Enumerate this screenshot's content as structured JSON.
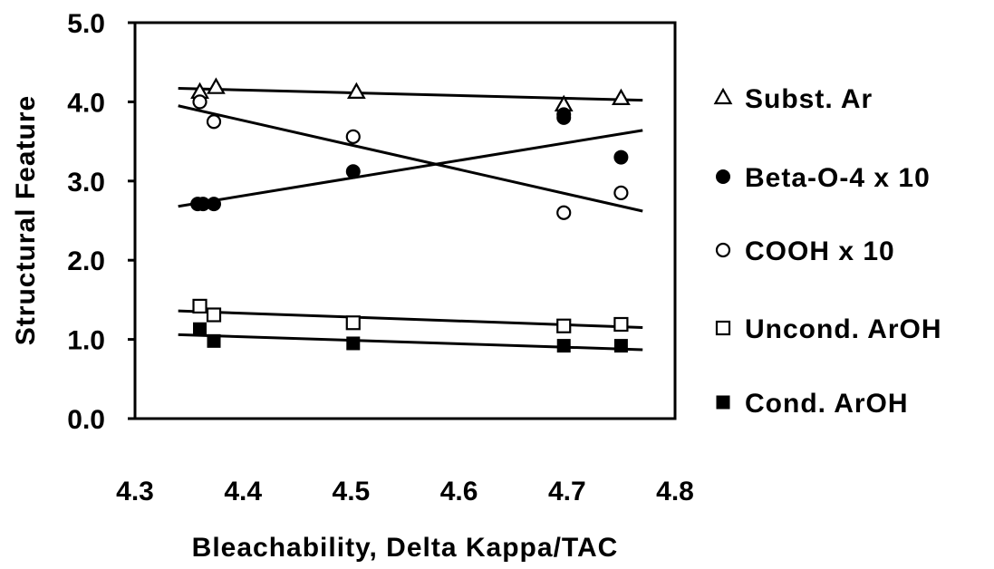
{
  "chart_data": {
    "type": "scatter",
    "title": "",
    "xlabel": "Bleachability, Delta Kappa/TAC",
    "ylabel": "Structural Feature",
    "xlim": [
      4.3,
      4.8
    ],
    "ylim": [
      0.0,
      5.0
    ],
    "x_ticks": [
      "4.3",
      "4.4",
      "4.5",
      "4.6",
      "4.7",
      "4.8"
    ],
    "y_ticks": [
      "0.0",
      "1.0",
      "2.0",
      "3.0",
      "4.0",
      "5.0"
    ],
    "grid": false,
    "legend_position": "right",
    "series": [
      {
        "name": "Subst. Ar",
        "marker": "triangle-open",
        "x": [
          4.36,
          4.375,
          4.505,
          4.697,
          4.75
        ],
        "y": [
          4.12,
          4.18,
          4.12,
          3.96,
          4.04
        ],
        "trend": [
          [
            4.34,
            4.17
          ],
          [
            4.77,
            4.02
          ]
        ]
      },
      {
        "name": "Beta-O-4 x 10",
        "marker": "circle-filled",
        "x": [
          4.358,
          4.363,
          4.373,
          4.502,
          4.697,
          4.697,
          4.75
        ],
        "y": [
          2.71,
          2.71,
          2.71,
          3.12,
          3.8,
          3.84,
          3.3
        ],
        "trend": [
          [
            4.34,
            2.68
          ],
          [
            4.77,
            3.64
          ]
        ]
      },
      {
        "name": "COOH x 10",
        "marker": "circle-open",
        "x": [
          4.36,
          4.373,
          4.502,
          4.697,
          4.75
        ],
        "y": [
          4.0,
          3.75,
          3.56,
          2.6,
          2.85
        ],
        "trend": [
          [
            4.34,
            3.95
          ],
          [
            4.77,
            2.62
          ]
        ]
      },
      {
        "name": "Uncond. ArOH",
        "marker": "square-open",
        "x": [
          4.36,
          4.373,
          4.502,
          4.697,
          4.75
        ],
        "y": [
          1.42,
          1.31,
          1.21,
          1.17,
          1.19
        ],
        "trend": [
          [
            4.34,
            1.36
          ],
          [
            4.77,
            1.15
          ]
        ]
      },
      {
        "name": "Cond. ArOH",
        "marker": "square-filled",
        "x": [
          4.36,
          4.373,
          4.502,
          4.697,
          4.75
        ],
        "y": [
          1.13,
          0.98,
          0.95,
          0.92,
          0.92
        ],
        "trend": [
          [
            4.34,
            1.06
          ],
          [
            4.77,
            0.87
          ]
        ]
      }
    ]
  }
}
